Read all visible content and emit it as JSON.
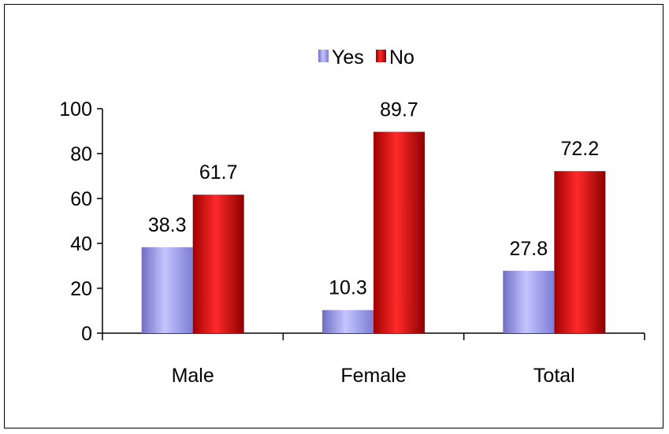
{
  "chart_data": {
    "type": "bar",
    "title": "",
    "xlabel": "",
    "ylabel": "",
    "categories": [
      "Male",
      "Female",
      "Total"
    ],
    "series": [
      {
        "name": "Yes",
        "values": [
          38.3,
          10.3,
          27.8
        ]
      },
      {
        "name": "No",
        "values": [
          61.7,
          89.7,
          72.2
        ]
      }
    ],
    "ylim": [
      0,
      100
    ],
    "yticks": [
      0,
      20,
      40,
      60,
      80,
      100
    ],
    "grid": false,
    "legend_position": "top-center",
    "colors": {
      "Yes": "#9999ee",
      "No": "#dd0000"
    }
  }
}
